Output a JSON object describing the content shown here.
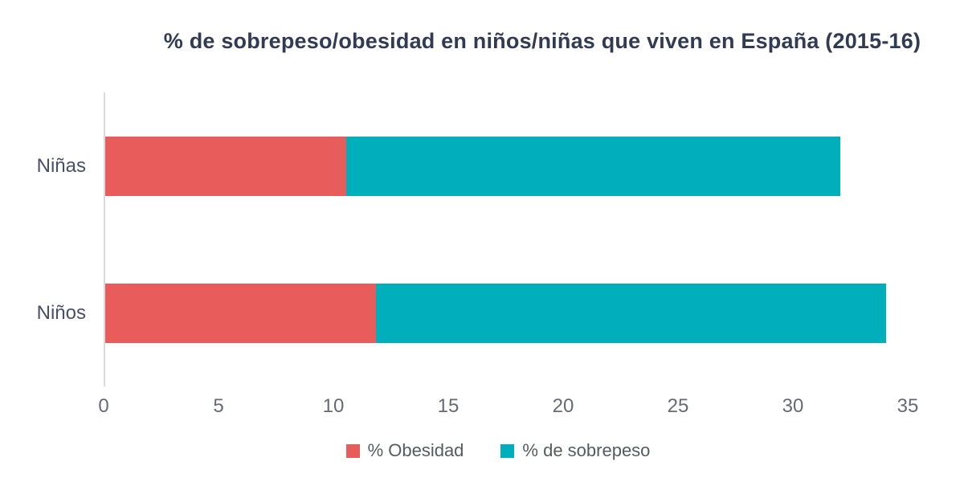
{
  "chart_data": {
    "type": "bar",
    "orientation": "horizontal",
    "stacked": true,
    "title": "% de sobrepeso/obesidad en niños/niñas que viven en España (2015-16)",
    "categories": [
      "Niñas",
      "Niños"
    ],
    "series": [
      {
        "name": "% Obesidad",
        "color": "#E95C5C",
        "values": [
          10.5,
          11.8
        ]
      },
      {
        "name": "% de sobrepeso",
        "color": "#00AFBB",
        "values": [
          21.5,
          22.2
        ]
      }
    ],
    "totals": [
      32,
      34
    ],
    "xlim": [
      0,
      35
    ],
    "xticks": [
      0,
      5,
      10,
      15,
      20,
      25,
      30,
      35
    ],
    "xlabel": "",
    "ylabel": "",
    "grid": false,
    "legend_position": "bottom"
  },
  "colors": {
    "background": "#FFFFFF",
    "axis_line": "#D8DADC",
    "title_text": "#313B53",
    "category_text": "#47506A",
    "tick_text": "#666B73",
    "legend_text": "#565A61"
  }
}
